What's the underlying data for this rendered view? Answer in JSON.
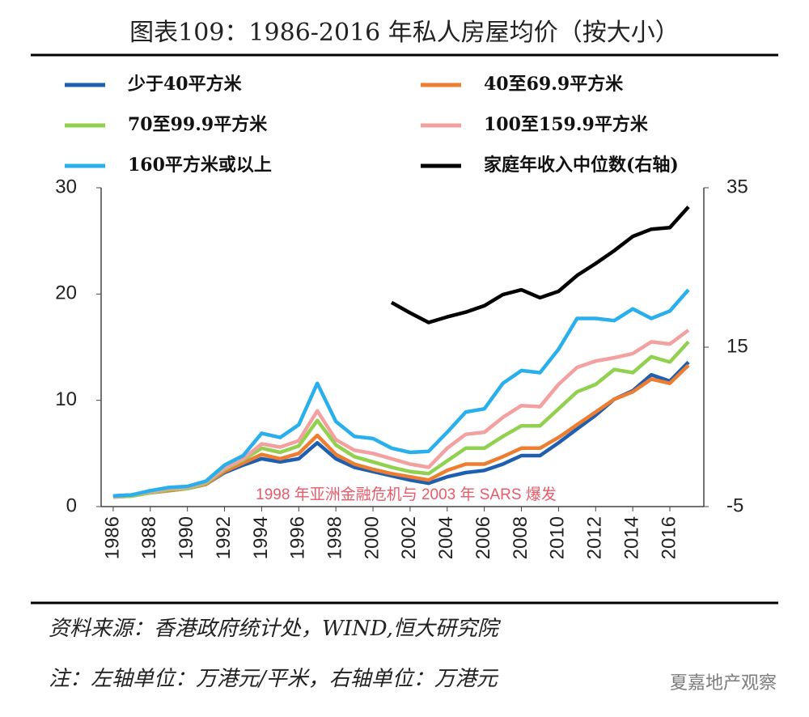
{
  "chart_data": {
    "type": "line",
    "title": "图表109：1986-2016 年私人房屋均价（按大小）",
    "annotation": "1998 年亚洲金融危机与 2003 年 SARS 爆发",
    "source": "资料来源：香港政府统计处，WIND,恒大研究院",
    "note": "注：左轴单位：万港元/平米，右轴单位：万港元",
    "watermark": "夏嘉地产观察",
    "x": [
      1986,
      1987,
      1988,
      1989,
      1990,
      1991,
      1992,
      1993,
      1994,
      1995,
      1996,
      1997,
      1998,
      1999,
      2000,
      2001,
      2002,
      2003,
      2004,
      2005,
      2006,
      2007,
      2008,
      2009,
      2010,
      2011,
      2012,
      2013,
      2014,
      2015,
      2016,
      2017
    ],
    "xlim": [
      1985.35,
      2017.83
    ],
    "xticks": [
      1986,
      1988,
      1990,
      1992,
      1994,
      1996,
      1998,
      2000,
      2002,
      2004,
      2006,
      2008,
      2010,
      2012,
      2014,
      2016
    ],
    "ylim": [
      0,
      30
    ],
    "yticks": [
      0,
      10,
      20,
      30
    ],
    "y2lim": [
      -5,
      35
    ],
    "y2ticks": [
      -5,
      15,
      35
    ],
    "series": [
      {
        "name": "少于40平方米",
        "color": "#1f5fb0",
        "values": [
          1.0,
          1.1,
          1.3,
          1.5,
          1.7,
          2.1,
          3.2,
          3.9,
          4.5,
          4.2,
          4.5,
          6.0,
          4.5,
          3.7,
          3.3,
          2.9,
          2.5,
          2.2,
          2.8,
          3.2,
          3.4,
          4.0,
          4.8,
          4.8,
          6.0,
          7.3,
          8.6,
          10.1,
          10.9,
          12.4,
          11.8,
          13.6
        ]
      },
      {
        "name": "40至69.9平方米",
        "color": "#ed7d31",
        "values": [
          0.9,
          1.0,
          1.3,
          1.5,
          1.7,
          2.1,
          3.3,
          4.1,
          4.9,
          4.5,
          5.0,
          6.7,
          4.9,
          4.0,
          3.5,
          3.1,
          2.8,
          2.5,
          3.4,
          4.0,
          4.0,
          4.7,
          5.5,
          5.5,
          6.5,
          7.7,
          8.9,
          10.1,
          10.8,
          12.0,
          11.6,
          13.3
        ]
      },
      {
        "name": "70至99.9平方米",
        "color": "#92d050",
        "values": [
          0.9,
          1.0,
          1.3,
          1.6,
          1.7,
          2.2,
          3.5,
          4.4,
          5.5,
          5.1,
          5.7,
          8.1,
          5.8,
          4.7,
          4.2,
          3.7,
          3.3,
          3.1,
          4.3,
          5.5,
          5.5,
          6.6,
          7.6,
          7.6,
          9.2,
          10.8,
          11.5,
          12.9,
          12.6,
          14.1,
          13.6,
          15.5
        ]
      },
      {
        "name": "100至159.9平方米",
        "color": "#f2a0a0",
        "values": [
          0.9,
          1.1,
          1.4,
          1.7,
          1.8,
          2.3,
          3.6,
          4.5,
          5.9,
          5.6,
          6.2,
          9.0,
          6.3,
          5.3,
          5.0,
          4.5,
          4.0,
          3.7,
          5.5,
          6.8,
          7.0,
          8.4,
          9.5,
          9.4,
          11.5,
          13.1,
          13.7,
          14.0,
          14.4,
          15.5,
          15.3,
          16.6
        ]
      },
      {
        "name": "160平方米或以上",
        "color": "#29b0ec",
        "values": [
          1.0,
          1.1,
          1.5,
          1.8,
          1.9,
          2.4,
          3.9,
          4.8,
          6.9,
          6.5,
          7.7,
          11.6,
          8.0,
          6.6,
          6.4,
          5.5,
          5.1,
          5.2,
          7.0,
          8.9,
          9.2,
          11.6,
          12.8,
          12.6,
          14.8,
          17.7,
          17.7,
          17.5,
          18.6,
          17.7,
          18.4,
          20.4
        ]
      },
      {
        "name": "家庭年收入中位数(右轴)",
        "color": "#000000",
        "axis": "y2",
        "values": [
          null,
          null,
          null,
          null,
          null,
          null,
          null,
          null,
          null,
          null,
          null,
          null,
          null,
          null,
          null,
          20.6,
          19.3,
          18.1,
          18.8,
          19.4,
          20.2,
          21.6,
          22.2,
          21.2,
          22.0,
          24.0,
          25.5,
          27.1,
          28.9,
          29.8,
          30.0,
          32.6
        ]
      }
    ]
  }
}
